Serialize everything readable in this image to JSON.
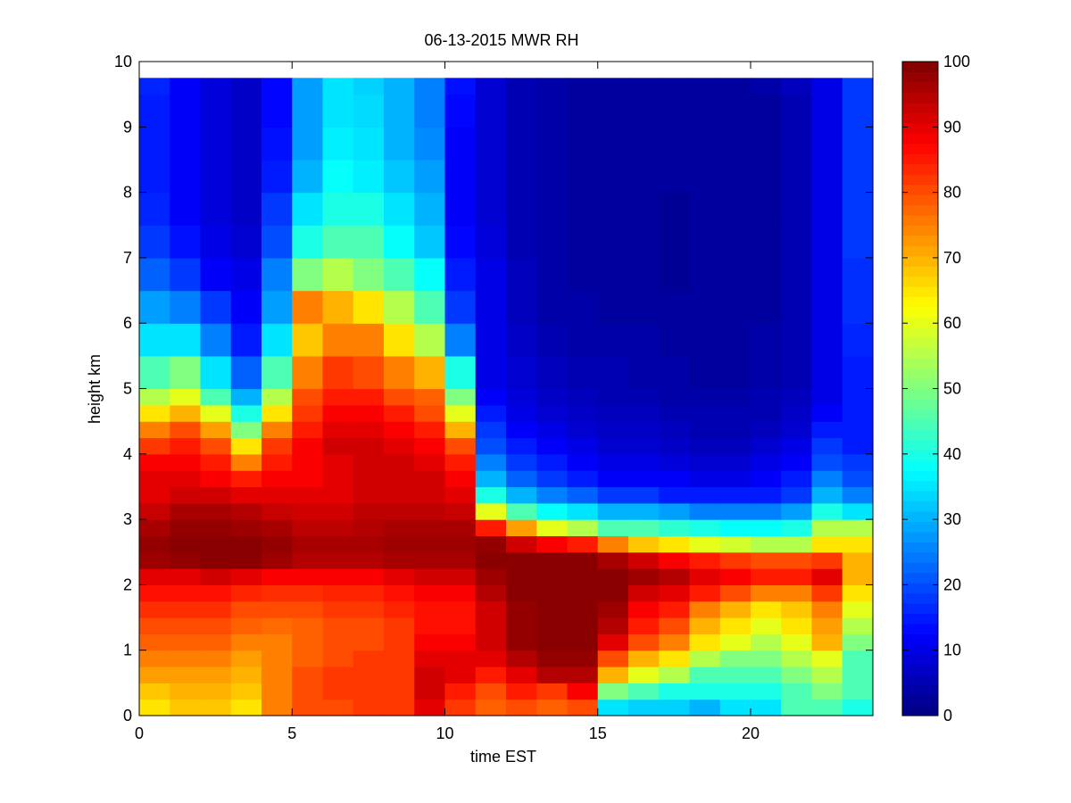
{
  "chart_data": {
    "type": "heatmap",
    "title": "06-13-2015 MWR RH",
    "xlabel": "time EST",
    "ylabel": "height km",
    "xlim": [
      0,
      24
    ],
    "ylim": [
      0,
      10
    ],
    "xticks": [
      0,
      5,
      10,
      15,
      20
    ],
    "yticks": [
      0,
      1,
      2,
      3,
      4,
      5,
      6,
      7,
      8,
      9,
      10
    ],
    "colorbar": {
      "min": 0,
      "max": 100,
      "ticks": [
        0,
        10,
        20,
        30,
        40,
        50,
        60,
        70,
        80,
        90,
        100
      ],
      "colormap": "jet"
    },
    "grid": false,
    "x": [
      0.5,
      1.5,
      2.5,
      3.5,
      4.5,
      5.5,
      6.5,
      7.5,
      8.5,
      9.5,
      10.5,
      11.5,
      12.5,
      13.5,
      14.5,
      15.5,
      16.5,
      17.5,
      18.5,
      19.5,
      20.5,
      21.5,
      22.5,
      23.5
    ],
    "y": [
      0,
      0.25,
      0.5,
      0.75,
      1,
      1.25,
      1.5,
      1.75,
      2,
      2.25,
      2.5,
      2.75,
      3,
      3.25,
      3.5,
      3.75,
      4,
      4.25,
      4.5,
      4.75,
      5,
      5.5,
      6,
      6.5,
      7,
      7.5,
      8,
      8.5,
      9,
      9.5,
      9.75
    ],
    "z": [
      [
        65,
        68,
        68,
        65,
        75,
        80,
        80,
        82,
        82,
        90,
        82,
        78,
        80,
        78,
        80,
        35,
        33,
        33,
        30,
        35,
        35,
        45,
        45,
        40
      ],
      [
        68,
        70,
        70,
        68,
        75,
        80,
        82,
        82,
        82,
        92,
        85,
        80,
        85,
        82,
        88,
        50,
        45,
        40,
        40,
        40,
        40,
        45,
        50,
        45
      ],
      [
        72,
        72,
        72,
        70,
        75,
        80,
        82,
        82,
        82,
        92,
        90,
        85,
        90,
        95,
        95,
        70,
        60,
        55,
        45,
        45,
        45,
        50,
        55,
        45
      ],
      [
        75,
        75,
        75,
        72,
        75,
        78,
        80,
        82,
        82,
        90,
        90,
        90,
        95,
        98,
        98,
        80,
        70,
        65,
        55,
        50,
        50,
        55,
        60,
        45
      ],
      [
        78,
        78,
        78,
        75,
        75,
        78,
        80,
        80,
        82,
        88,
        88,
        92,
        98,
        99,
        99,
        90,
        80,
        75,
        65,
        60,
        55,
        60,
        70,
        50
      ],
      [
        80,
        80,
        80,
        78,
        77,
        78,
        80,
        80,
        82,
        86,
        86,
        92,
        98,
        99,
        99,
        95,
        85,
        80,
        70,
        65,
        60,
        65,
        72,
        55
      ],
      [
        83,
        83,
        83,
        80,
        80,
        80,
        82,
        82,
        84,
        86,
        86,
        92,
        98,
        99,
        99,
        97,
        88,
        85,
        75,
        70,
        65,
        68,
        75,
        60
      ],
      [
        86,
        86,
        86,
        84,
        83,
        83,
        84,
        84,
        86,
        88,
        88,
        95,
        99,
        99,
        99,
        99,
        92,
        90,
        85,
        80,
        75,
        75,
        82,
        65
      ],
      [
        90,
        90,
        92,
        90,
        88,
        88,
        88,
        88,
        90,
        92,
        92,
        97,
        99,
        99,
        99,
        99,
        97,
        95,
        90,
        88,
        85,
        85,
        90,
        70
      ],
      [
        97,
        98,
        99,
        99,
        97,
        95,
        95,
        95,
        96,
        96,
        96,
        99,
        99,
        99,
        99,
        96,
        92,
        88,
        85,
        82,
        80,
        80,
        82,
        70
      ],
      [
        98,
        99,
        99,
        99,
        98,
        96,
        96,
        96,
        97,
        97,
        97,
        98,
        92,
        88,
        85,
        75,
        68,
        65,
        60,
        58,
        55,
        55,
        65,
        65
      ],
      [
        96,
        98,
        98,
        97,
        96,
        94,
        94,
        95,
        96,
        96,
        96,
        85,
        72,
        60,
        55,
        45,
        45,
        42,
        40,
        38,
        38,
        40,
        55,
        55
      ],
      [
        93,
        96,
        96,
        95,
        93,
        92,
        92,
        94,
        94,
        94,
        93,
        60,
        45,
        38,
        35,
        30,
        30,
        28,
        25,
        25,
        25,
        28,
        40,
        35
      ],
      [
        90,
        92,
        92,
        90,
        90,
        90,
        90,
        92,
        92,
        92,
        90,
        40,
        30,
        25,
        22,
        18,
        18,
        15,
        15,
        15,
        15,
        18,
        30,
        25
      ],
      [
        90,
        90,
        88,
        85,
        88,
        88,
        90,
        92,
        92,
        92,
        88,
        30,
        22,
        18,
        15,
        12,
        12,
        12,
        10,
        10,
        12,
        15,
        25,
        20
      ],
      [
        88,
        88,
        85,
        75,
        85,
        88,
        90,
        92,
        92,
        90,
        85,
        25,
        18,
        15,
        12,
        10,
        10,
        9,
        8,
        8,
        10,
        12,
        20,
        18
      ],
      [
        82,
        85,
        80,
        65,
        82,
        88,
        92,
        92,
        90,
        88,
        80,
        20,
        15,
        12,
        10,
        8,
        8,
        7,
        6,
        6,
        8,
        10,
        18,
        15
      ],
      [
        75,
        80,
        72,
        50,
        75,
        85,
        90,
        90,
        88,
        85,
        70,
        18,
        12,
        10,
        8,
        7,
        7,
        6,
        5,
        5,
        6,
        8,
        15,
        15
      ],
      [
        65,
        70,
        60,
        40,
        65,
        82,
        88,
        88,
        85,
        80,
        60,
        15,
        10,
        8,
        7,
        6,
        6,
        5,
        5,
        5,
        5,
        7,
        12,
        15
      ],
      [
        55,
        60,
        45,
        30,
        55,
        80,
        85,
        85,
        80,
        78,
        50,
        12,
        9,
        7,
        6,
        5,
        5,
        4,
        4,
        4,
        5,
        6,
        10,
        15
      ],
      [
        45,
        50,
        35,
        22,
        45,
        75,
        82,
        80,
        75,
        70,
        40,
        10,
        8,
        6,
        5,
        5,
        4,
        4,
        3,
        3,
        4,
        5,
        10,
        15
      ],
      [
        35,
        35,
        25,
        15,
        35,
        68,
        75,
        75,
        65,
        55,
        25,
        10,
        7,
        5,
        4,
        4,
        4,
        3,
        3,
        3,
        4,
        5,
        10,
        16
      ],
      [
        28,
        25,
        18,
        12,
        28,
        75,
        70,
        65,
        55,
        45,
        18,
        10,
        6,
        4,
        4,
        3,
        3,
        3,
        3,
        3,
        3,
        5,
        10,
        17
      ],
      [
        22,
        18,
        12,
        10,
        25,
        50,
        55,
        50,
        45,
        38,
        15,
        10,
        6,
        4,
        3,
        3,
        3,
        2,
        3,
        3,
        3,
        5,
        10,
        17
      ],
      [
        18,
        14,
        10,
        8,
        20,
        40,
        45,
        45,
        38,
        32,
        13,
        9,
        5,
        4,
        3,
        3,
        3,
        2,
        3,
        3,
        3,
        5,
        10,
        18
      ],
      [
        16,
        12,
        9,
        7,
        18,
        35,
        40,
        40,
        35,
        30,
        12,
        8,
        5,
        4,
        3,
        3,
        3,
        2,
        3,
        3,
        3,
        5,
        10,
        18
      ],
      [
        15,
        12,
        9,
        7,
        15,
        30,
        38,
        36,
        32,
        28,
        12,
        8,
        5,
        4,
        3,
        3,
        3,
        3,
        3,
        3,
        3,
        5,
        10,
        18
      ],
      [
        15,
        12,
        9,
        7,
        14,
        28,
        36,
        35,
        30,
        26,
        12,
        8,
        5,
        4,
        3,
        3,
        3,
        3,
        3,
        3,
        3,
        5,
        10,
        18
      ],
      [
        15,
        12,
        9,
        7,
        13,
        28,
        35,
        34,
        30,
        25,
        13,
        8,
        5,
        4,
        3,
        3,
        3,
        3,
        3,
        3,
        3,
        5,
        10,
        18
      ],
      [
        16,
        12,
        9,
        7,
        13,
        28,
        35,
        33,
        30,
        25,
        14,
        8,
        5,
        4,
        3,
        3,
        3,
        3,
        3,
        3,
        4,
        6,
        10,
        18
      ],
      [
        16,
        13,
        10,
        8,
        13,
        28,
        35,
        33,
        30,
        25,
        14,
        8,
        5,
        4,
        3,
        3,
        3,
        3,
        3,
        4,
        4,
        6,
        10,
        18
      ]
    ]
  }
}
